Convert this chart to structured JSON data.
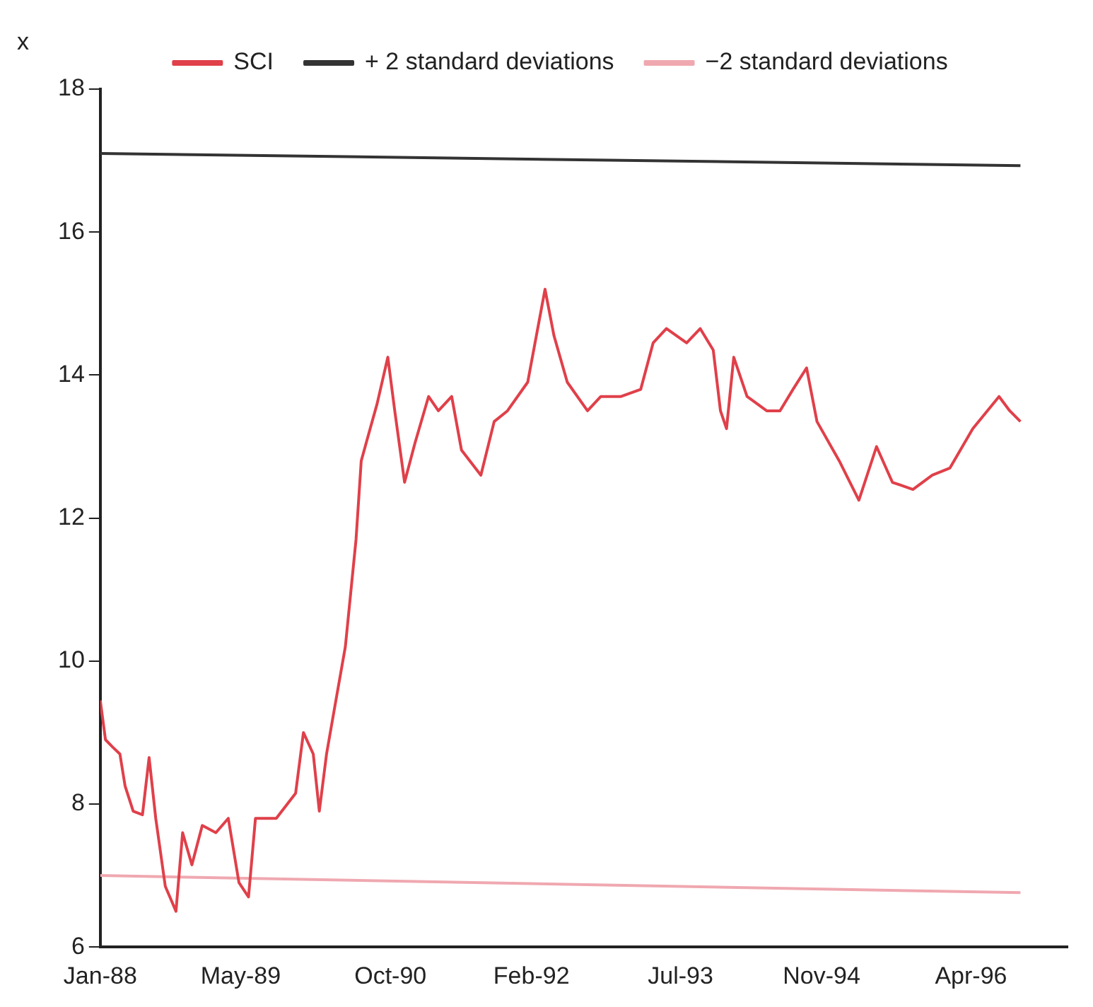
{
  "chart_data": {
    "type": "line",
    "ylabel": "x",
    "legend": "top",
    "grid": false,
    "marker": "none",
    "line_style": "solid",
    "xlim": [
      "1988-01",
      "1997-03"
    ],
    "xticks": [
      {
        "value": "1988-01",
        "label": "Jan-88"
      },
      {
        "value": "1989-05",
        "label": "May-89"
      },
      {
        "value": "1990-10",
        "label": "Oct-90"
      },
      {
        "value": "1992-02",
        "label": "Feb-92"
      },
      {
        "value": "1993-07",
        "label": "Jul-93"
      },
      {
        "value": "1994-11",
        "label": "Nov-94"
      },
      {
        "value": "1996-04",
        "label": "Apr-96"
      }
    ],
    "ylim": [
      6,
      18
    ],
    "yticks": [
      6,
      8,
      10,
      12,
      14,
      16,
      18
    ],
    "series": [
      {
        "name": "SCI",
        "color": "#e0404a",
        "x": [
          "1988-01-01",
          "1988-01-19",
          "1988-02-12",
          "1988-03-09",
          "1988-03-27",
          "1988-04-24",
          "1988-05-26",
          "1988-06-18",
          "1988-07-11",
          "1988-08-13",
          "1988-09-19",
          "1988-10-12",
          "1988-11-13",
          "1988-12-19",
          "1989-02-04",
          "1989-03-19",
          "1989-04-25",
          "1989-05-28",
          "1989-06-21",
          "1989-09-01",
          "1989-11-07",
          "1989-12-04",
          "1990-01-07",
          "1990-01-28",
          "1990-02-22",
          "1990-03-22",
          "1990-04-28",
          "1990-06-04",
          "1990-06-22",
          "1990-07-16",
          "1990-08-16",
          "1990-09-22",
          "1990-10-16",
          "1990-11-19",
          "1990-12-25",
          "1991-02-10",
          "1991-03-16",
          "1991-05-01",
          "1991-06-04",
          "1991-08-10",
          "1991-09-25",
          "1991-11-10",
          "1992-01-19",
          "1992-03-19",
          "1992-04-19",
          "1992-06-04",
          "1992-08-13",
          "1992-09-28",
          "1992-12-07",
          "1993-02-13",
          "1993-03-28",
          "1993-05-13",
          "1993-07-22",
          "1993-09-07",
          "1993-10-22",
          "1993-11-16",
          "1993-12-07",
          "1994-01-01",
          "1994-02-16",
          "1994-04-25",
          "1994-06-10",
          "1994-07-25",
          "1994-09-10",
          "1994-10-16",
          "1995-01-01",
          "1995-03-10",
          "1995-05-10",
          "1995-07-04",
          "1995-09-13",
          "1995-11-19",
          "1996-01-19",
          "1996-04-07",
          "1996-07-07",
          "1996-08-13",
          "1996-09-19"
        ],
        "values": [
          9.45,
          8.9,
          8.8,
          8.7,
          8.25,
          7.9,
          7.85,
          8.65,
          7.8,
          6.85,
          6.5,
          7.6,
          7.15,
          7.7,
          7.6,
          7.8,
          6.9,
          6.7,
          7.8,
          7.8,
          8.15,
          9.0,
          8.7,
          7.9,
          8.7,
          9.35,
          10.2,
          11.7,
          12.8,
          13.15,
          13.6,
          14.25,
          13.5,
          12.5,
          13.05,
          13.7,
          13.5,
          13.7,
          12.95,
          12.6,
          13.35,
          13.5,
          13.9,
          15.2,
          14.55,
          13.9,
          13.5,
          13.7,
          13.7,
          13.8,
          14.45,
          14.65,
          14.45,
          14.65,
          14.35,
          13.5,
          13.25,
          14.25,
          13.7,
          13.5,
          13.5,
          13.8,
          14.1,
          13.35,
          12.8,
          12.25,
          13.0,
          12.5,
          12.4,
          12.6,
          12.7,
          13.25,
          13.7,
          13.5,
          13.35
        ]
      },
      {
        "name": "+ 2 standard deviations",
        "color": "#333333",
        "x": [
          "1988-01-01",
          "1996-09-19"
        ],
        "values": [
          17.1,
          16.93
        ]
      },
      {
        "name": "−2 standard deviations",
        "color": "#f0a8b0",
        "x": [
          "1988-01-01",
          "1996-09-19"
        ],
        "values": [
          7.0,
          6.76
        ]
      }
    ]
  }
}
